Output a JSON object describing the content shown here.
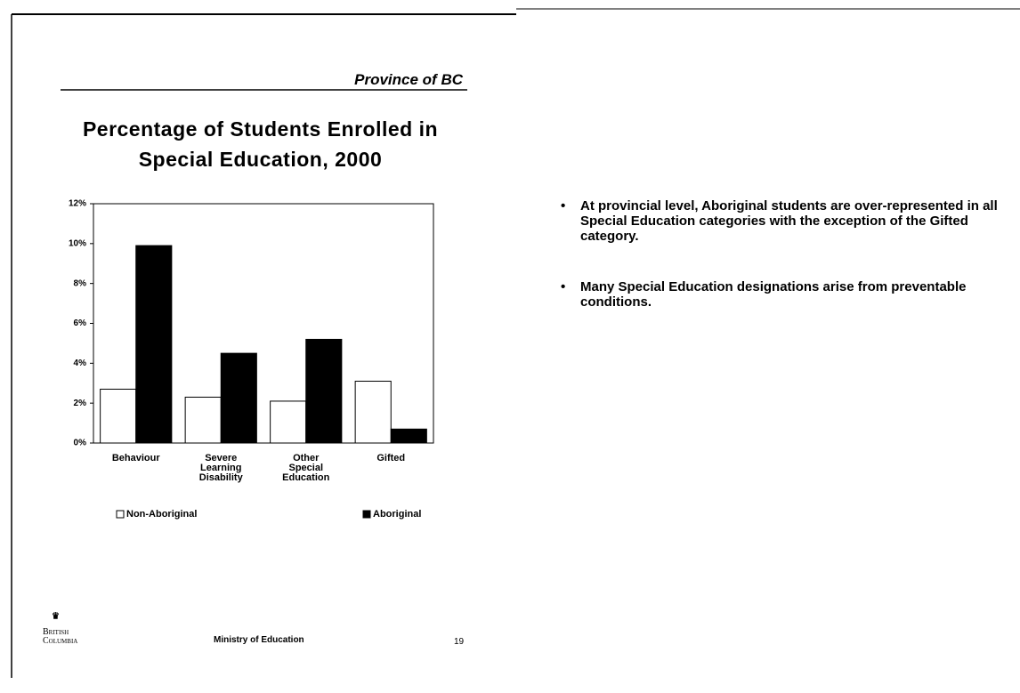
{
  "header": "Province of BC",
  "chart_data": {
    "type": "bar",
    "title": "Percentage of Students Enrolled in Special Education, 2000",
    "categories": [
      "Behaviour",
      "Severe Learning Disability",
      "Other Special Education",
      "Gifted"
    ],
    "series": [
      {
        "name": "Non-Aboriginal",
        "color": "#ffffff",
        "values": [
          2.7,
          2.3,
          2.1,
          3.1
        ]
      },
      {
        "name": "Aboriginal",
        "color": "#000000",
        "values": [
          9.9,
          4.5,
          5.2,
          0.7
        ]
      }
    ],
    "ylim": [
      0,
      12
    ],
    "yticks": [
      {
        "value": 0,
        "label": "0%"
      },
      {
        "value": 2,
        "label": "2%"
      },
      {
        "value": 4,
        "label": "4%"
      },
      {
        "value": 6,
        "label": "6%"
      },
      {
        "value": 8,
        "label": "8%"
      },
      {
        "value": 10,
        "label": "10%"
      },
      {
        "value": 12,
        "label": "12%"
      }
    ],
    "grid": false
  },
  "bullets": [
    "At provincial level, Aboriginal students are over-represented in all Special Education categories with the exception of the Gifted category.",
    "Many Special Education designations arise from preventable conditions."
  ],
  "footer": {
    "logo": "British Columbia",
    "ministry": "Ministry of Education",
    "page": "19"
  }
}
